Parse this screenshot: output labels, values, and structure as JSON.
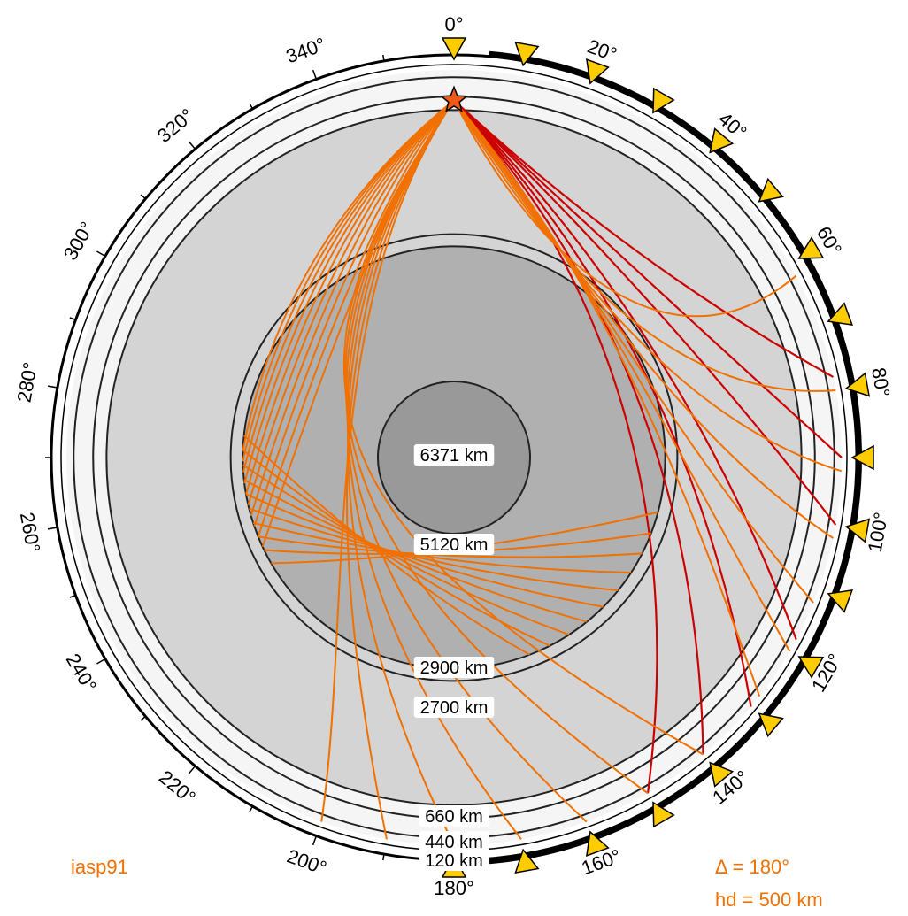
{
  "figure": {
    "model": "iasp91",
    "distance_label": "Δ = 180°",
    "depth_label": "hd = 500 km",
    "annotation_color": "#f07000"
  },
  "layers": [
    {
      "label": "120 km",
      "depth_km": 120
    },
    {
      "label": "440 km",
      "depth_km": 440
    },
    {
      "label": "660 km",
      "depth_km": 660
    },
    {
      "label": "2700 km",
      "depth_km": 2700
    },
    {
      "label": "2900 km",
      "depth_km": 2900
    },
    {
      "label": "5120 km",
      "depth_km": 5120
    },
    {
      "label": "6371 km",
      "depth_km": 6371
    }
  ],
  "shell_colors": {
    "crust": "#f5f5f5",
    "mantle": "#d4d4d4",
    "outer_core": "#b0b0b0",
    "inner_core": "#999999"
  },
  "angle_labels": [
    "0°",
    "20°",
    "40°",
    "60°",
    "80°",
    "100°",
    "120°",
    "140°",
    "160°",
    "180°",
    "200°",
    "220°",
    "240°",
    "260°",
    "280°",
    "300°",
    "320°",
    "340°"
  ],
  "source": {
    "symbol": "star",
    "color": "#f05a14",
    "depth_km": 500,
    "angle_deg": 0
  },
  "stations": {
    "color": "#ffcc00",
    "angles_deg": [
      0,
      10,
      20,
      30,
      40,
      50,
      60,
      70,
      80,
      90,
      100,
      110,
      120,
      130,
      140,
      150,
      160,
      170,
      180
    ]
  },
  "ray_colors": {
    "direct": "#cc0000",
    "core": "#f07000"
  }
}
